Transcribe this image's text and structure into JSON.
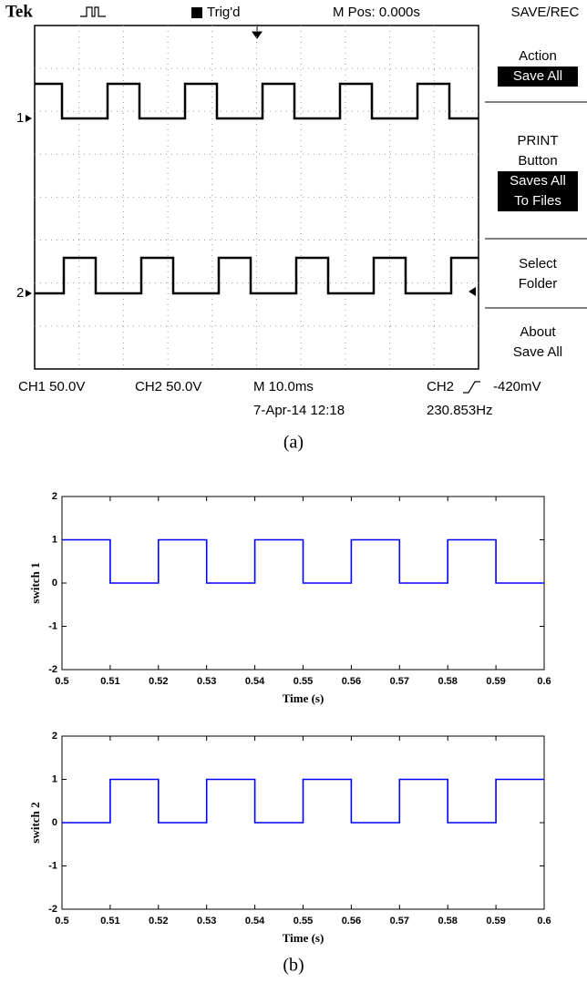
{
  "scope": {
    "brand": "Tek",
    "trigger_state": "Trig'd",
    "position": "M Pos: 0.000s",
    "menu_title": "SAVE/REC",
    "menu": [
      {
        "lines": [
          "Action"
        ],
        "highlighted": [
          "Save All"
        ]
      },
      {
        "lines": [
          "PRINT",
          "Button"
        ],
        "highlighted": [
          "Saves All",
          "To Files"
        ]
      },
      {
        "lines": [
          "Select",
          "Folder"
        ]
      },
      {
        "lines": [
          "About",
          "Save All"
        ]
      }
    ],
    "channel_markers": [
      "1",
      "2"
    ],
    "readouts": {
      "ch1": "CH1  50.0V",
      "ch2": "CH2  50.0V",
      "timebase": "M 10.0ms",
      "date": "7-Apr-14 12:18",
      "trigger_source": "CH2",
      "trigger_level": "-420mV",
      "frequency": "230.853Hz"
    }
  },
  "captions": {
    "a": "(a)",
    "b": "(b)"
  },
  "chart_data": [
    {
      "type": "line",
      "ylabel": "switch 1",
      "xlabel": "Time (s)",
      "color": "#0000ff",
      "x": [
        0.5,
        0.51,
        0.51,
        0.52,
        0.52,
        0.53,
        0.53,
        0.54,
        0.54,
        0.55,
        0.55,
        0.56,
        0.56,
        0.57,
        0.57,
        0.58,
        0.58,
        0.59,
        0.59,
        0.6
      ],
      "values": [
        1,
        1,
        0,
        0,
        1,
        1,
        0,
        0,
        1,
        1,
        0,
        0,
        1,
        1,
        0,
        0,
        1,
        1,
        0,
        0
      ],
      "xlim": [
        0.5,
        0.6
      ],
      "xticks": [
        0.5,
        0.51,
        0.52,
        0.53,
        0.54,
        0.55,
        0.56,
        0.57,
        0.58,
        0.59,
        0.6
      ],
      "ylim": [
        -2,
        2
      ],
      "yticks": [
        -2,
        -1,
        0,
        1,
        2
      ]
    },
    {
      "type": "line",
      "ylabel": "switch 2",
      "xlabel": "Time (s)",
      "color": "#0000ff",
      "x": [
        0.5,
        0.51,
        0.51,
        0.52,
        0.52,
        0.53,
        0.53,
        0.54,
        0.54,
        0.55,
        0.55,
        0.56,
        0.56,
        0.57,
        0.57,
        0.58,
        0.58,
        0.59,
        0.59,
        0.6
      ],
      "values": [
        0,
        0,
        1,
        1,
        0,
        0,
        1,
        1,
        0,
        0,
        1,
        1,
        0,
        0,
        1,
        1,
        0,
        0,
        1,
        1
      ],
      "xlim": [
        0.5,
        0.6
      ],
      "xticks": [
        0.5,
        0.51,
        0.52,
        0.53,
        0.54,
        0.55,
        0.56,
        0.57,
        0.58,
        0.59,
        0.6
      ],
      "ylim": [
        -2,
        2
      ],
      "yticks": [
        -2,
        -1,
        0,
        1,
        2
      ]
    }
  ]
}
